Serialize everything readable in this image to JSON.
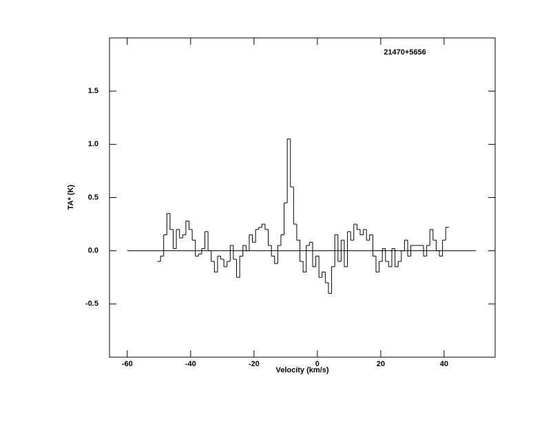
{
  "chart_data": {
    "type": "step",
    "title": "21470+5656",
    "x_label": "Velocity (km/s)",
    "y_label": "TA* (K)",
    "xlim": [
      -65.6,
      56.1
    ],
    "ylim": [
      -1.0,
      2.0
    ],
    "xticks": [
      -60,
      -40,
      -20,
      0,
      20,
      40
    ],
    "yticks": [
      -0.5,
      {
        "value": 0,
        "label": "0.0"
      },
      0.5,
      {
        "value": 1,
        "label": "1.0"
      },
      1.5
    ],
    "baseline": {
      "y": 0,
      "x": [
        -60,
        50
      ]
    },
    "color": "#000000",
    "x": [
      -50,
      -49,
      -48,
      -47,
      -46,
      -45,
      -44,
      -43,
      -42,
      -41,
      -40,
      -39,
      -38,
      -37,
      -36,
      -35,
      -34,
      -33,
      -32,
      -31,
      -30,
      -29,
      -28,
      -27,
      -26,
      -25,
      -24,
      -23,
      -22,
      -21,
      -20,
      -19,
      -18,
      -17,
      -16,
      -15,
      -14,
      -13,
      -12,
      -11,
      -10,
      -9,
      -8,
      -7,
      -6,
      -5,
      -4,
      -3,
      -2,
      -1,
      0,
      1,
      2,
      3,
      4,
      5,
      6,
      7,
      8,
      9,
      10,
      11,
      12,
      13,
      14,
      15,
      16,
      17,
      18,
      19,
      20,
      21,
      22,
      23,
      24,
      25,
      26,
      27,
      28,
      29,
      30,
      31,
      32,
      33,
      34,
      35,
      36,
      37,
      38,
      39,
      40,
      41
    ],
    "values": [
      -0.1,
      -0.05,
      0.15,
      0.35,
      0.2,
      0.02,
      0.2,
      0.12,
      0.15,
      0.28,
      0.2,
      0.1,
      -0.05,
      -0.03,
      0.02,
      0.18,
      0.0,
      -0.1,
      -0.2,
      -0.05,
      -0.08,
      -0.15,
      -0.1,
      0.05,
      -0.08,
      -0.25,
      -0.05,
      0.05,
      0.0,
      0.15,
      0.08,
      0.2,
      0.22,
      0.25,
      0.2,
      0.05,
      -0.05,
      -0.12,
      0.05,
      0.15,
      0.45,
      1.05,
      0.6,
      0.25,
      0.1,
      -0.1,
      -0.2,
      0.05,
      0.08,
      -0.15,
      -0.05,
      -0.25,
      -0.2,
      -0.3,
      -0.4,
      -0.15,
      0.15,
      -0.1,
      0.1,
      -0.15,
      0.18,
      0.1,
      0.25,
      0.2,
      0.15,
      0.2,
      0.1,
      0.15,
      -0.05,
      -0.2,
      -0.1,
      0.02,
      -0.1,
      -0.15,
      0.02,
      -0.15,
      -0.1,
      0.0,
      0.1,
      -0.05,
      0.05,
      0.05,
      0.05,
      0.05,
      -0.05,
      0.05,
      0.2,
      0.1,
      0.0,
      -0.05,
      0.1,
      0.22
    ]
  }
}
